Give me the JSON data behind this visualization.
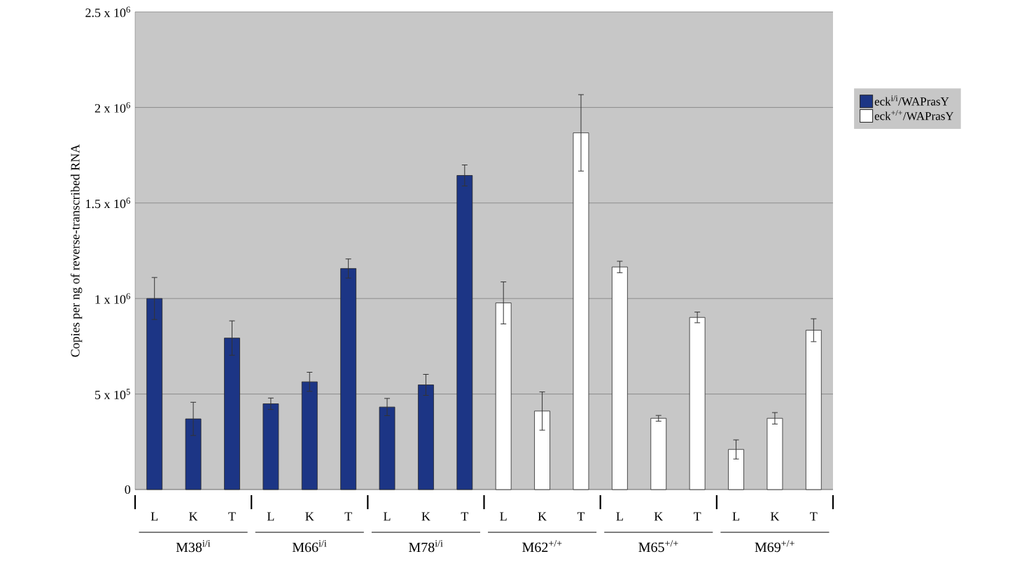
{
  "chart_data": {
    "type": "bar",
    "ylabel": "Copies per ng of reverse-transcribed RNA",
    "categories": [
      "L",
      "K",
      "T",
      "L",
      "K",
      "T",
      "L",
      "K",
      "T",
      "L",
      "K",
      "T",
      "L",
      "K",
      "T",
      "L",
      "K",
      "T"
    ],
    "series": [
      {
        "name": "eck$^{i/i}$/WAPrasY",
        "color": "#1c3585",
        "values": [
          1000000,
          370000,
          793000,
          449000,
          564000,
          1157000,
          432000,
          548000,
          1644000,
          null,
          null,
          null,
          null,
          null,
          null,
          null,
          null,
          null
        ],
        "errors": [
          110000,
          87000,
          90000,
          30000,
          50000,
          50000,
          45000,
          55000,
          55000,
          null,
          null,
          null,
          null,
          null,
          null,
          null,
          null,
          null
        ]
      },
      {
        "name": "eck$^{+/+}$/WAPrasY",
        "color": "#ffffff",
        "values": [
          null,
          null,
          null,
          null,
          null,
          null,
          null,
          null,
          null,
          977000,
          411000,
          1867000,
          1165000,
          373000,
          901000,
          210000,
          373000,
          834000
        ],
        "errors": [
          null,
          null,
          null,
          null,
          null,
          null,
          null,
          null,
          null,
          110000,
          100000,
          200000,
          30000,
          15000,
          28000,
          50000,
          30000,
          60000
        ]
      }
    ],
    "annotations": [
      "M38$^{i/i}$",
      "M66$^{i/i}$",
      "M78$^{i/i}$",
      "M62$^{+/+}$",
      "M65$^{+/+}$",
      "M69$^{+/+}$"
    ],
    "ylim": [
      0,
      2500000
    ],
    "yticks": [
      0,
      {
        "value": 500000,
        "label": "5 x 10$^{5}$"
      },
      {
        "value": 1000000,
        "label": "1 x 10$^{6}$"
      },
      {
        "value": 1500000,
        "label": "1.5 x 10$^{6}$"
      },
      {
        "value": 2000000,
        "label": "2 x 10$^{6}$"
      },
      {
        "value": 2500000,
        "label": "2.5 x 10$^{6}$"
      }
    ],
    "grid": "y",
    "legend": "right"
  }
}
